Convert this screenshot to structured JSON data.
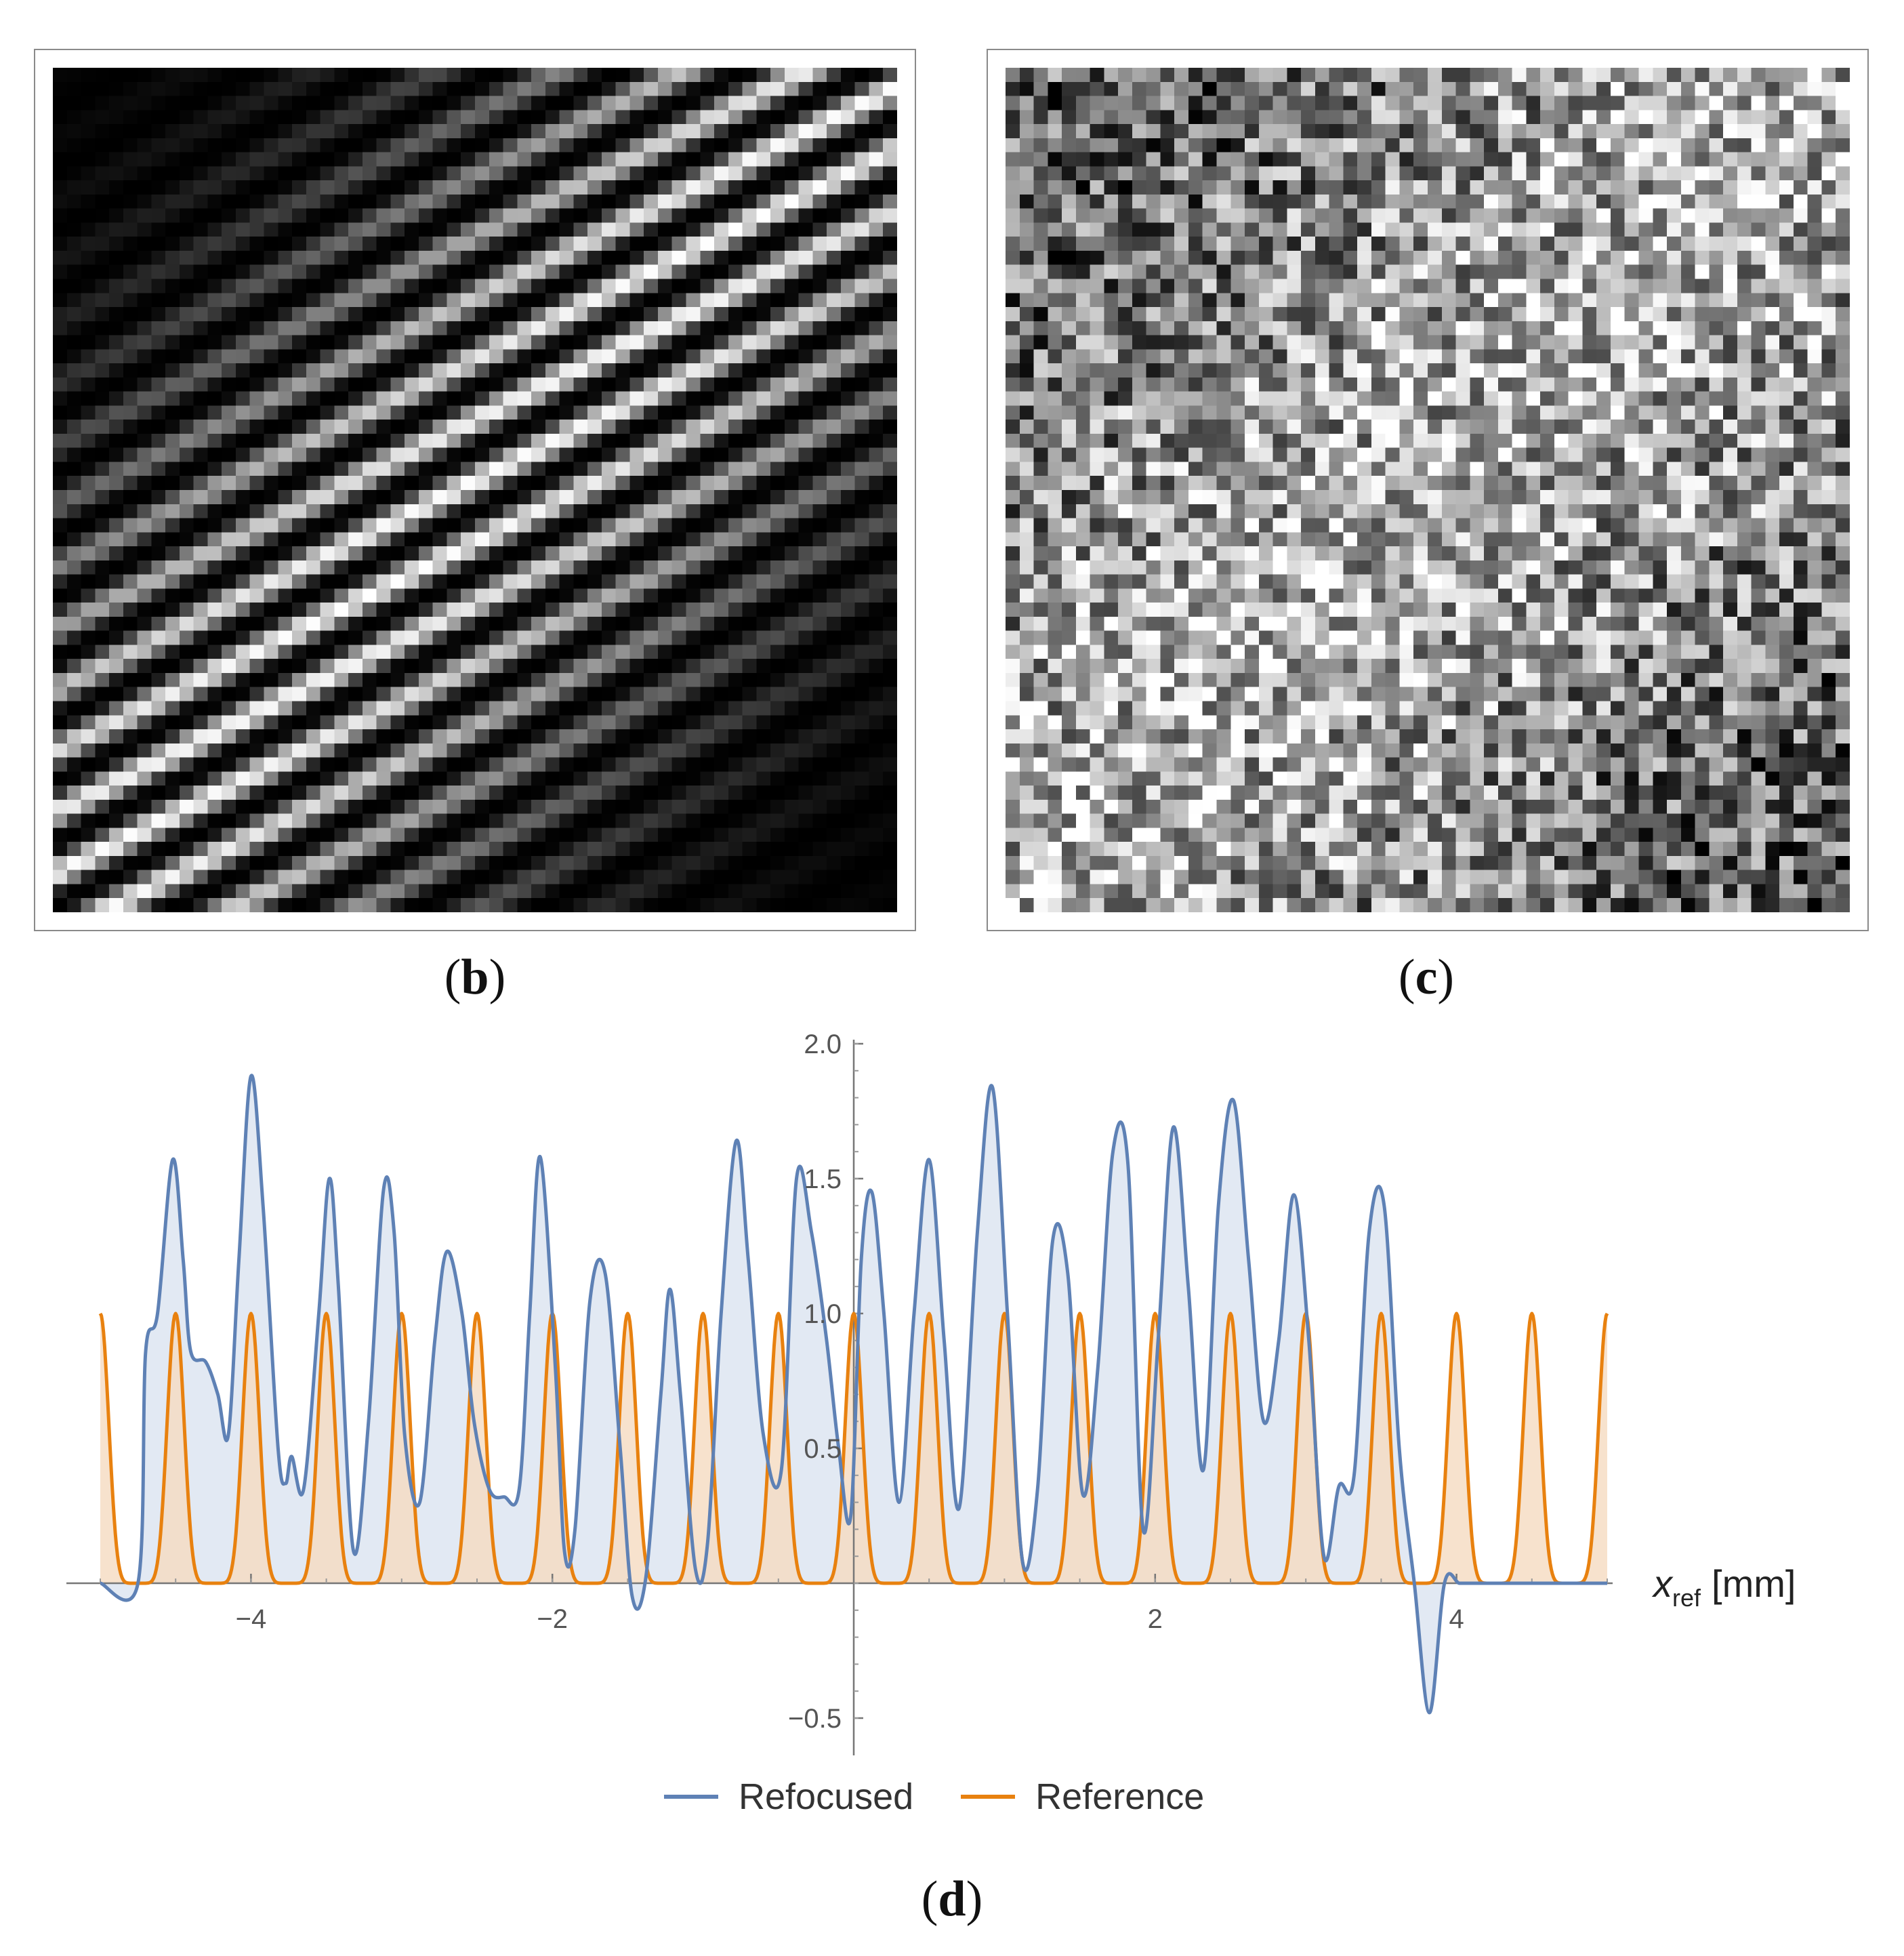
{
  "panels": {
    "b": {
      "label": "b"
    },
    "c": {
      "label": "c"
    },
    "d": {
      "label": "d"
    }
  },
  "chart_data": {
    "type": "area",
    "xlabel": "x",
    "xlabel_sub": "ref",
    "xlabel_unit": "[mm]",
    "xlim": [
      -5,
      5
    ],
    "ylim": [
      -0.62,
      2.0
    ],
    "xticks": [
      -4,
      -2,
      2,
      4
    ],
    "yticks": [
      -0.5,
      0.5,
      1.0,
      1.5,
      2.0
    ],
    "xtick_labels": [
      "−4",
      "−2",
      "2",
      "4"
    ],
    "ytick_labels": [
      "−0.5",
      "0.5",
      "1.0",
      "1.5",
      "2.0"
    ],
    "legend_position": "bottom-center",
    "series": [
      {
        "name": "Refocused",
        "color": "#5e81b5",
        "fill": "#dde5f1",
        "x": [
          -5.0,
          -4.75,
          -4.7,
          -4.62,
          -4.52,
          -4.45,
          -4.4,
          -4.3,
          -4.22,
          -4.15,
          -4.08,
          -4.0,
          -3.92,
          -3.82,
          -3.77,
          -3.73,
          -3.65,
          -3.55,
          -3.48,
          -3.42,
          -3.32,
          -3.22,
          -3.12,
          -3.05,
          -2.98,
          -2.88,
          -2.78,
          -2.7,
          -2.6,
          -2.52,
          -2.42,
          -2.32,
          -2.22,
          -2.15,
          -2.08,
          -1.98,
          -1.92,
          -1.85,
          -1.75,
          -1.65,
          -1.55,
          -1.47,
          -1.38,
          -1.28,
          -1.22,
          -1.15,
          -1.05,
          -0.97,
          -0.88,
          -0.78,
          -0.7,
          -0.6,
          -0.48,
          -0.38,
          -0.28,
          -0.18,
          -0.1,
          -0.02,
          0.05,
          0.12,
          0.2,
          0.3,
          0.4,
          0.5,
          0.6,
          0.7,
          0.82,
          0.92,
          1.02,
          1.12,
          1.22,
          1.32,
          1.42,
          1.52,
          1.62,
          1.72,
          1.82,
          1.92,
          2.02,
          2.12,
          2.22,
          2.32,
          2.42,
          2.52,
          2.62,
          2.72,
          2.82,
          2.92,
          3.02,
          3.12,
          3.22,
          3.32,
          3.42,
          3.52,
          3.62,
          3.72,
          3.82,
          3.92,
          4.02,
          4.12,
          4.2,
          4.27,
          4.32,
          4.42,
          4.5,
          4.58,
          4.66,
          4.72,
          4.75,
          4.78,
          4.82,
          4.86,
          5.0
        ],
        "y": [
          0.0,
          0.0,
          0.85,
          1.0,
          1.57,
          1.2,
          0.86,
          0.82,
          0.7,
          0.55,
          1.2,
          1.88,
          1.4,
          0.5,
          0.37,
          0.47,
          0.35,
          1.0,
          1.5,
          1.1,
          0.12,
          0.6,
          1.46,
          1.3,
          0.55,
          0.3,
          0.9,
          1.23,
          1.0,
          0.6,
          0.35,
          0.32,
          0.35,
          1.0,
          1.58,
          0.8,
          0.12,
          0.2,
          1.05,
          1.15,
          0.5,
          -0.05,
          0.02,
          0.7,
          1.09,
          0.7,
          0.05,
          0.15,
          1.0,
          1.64,
          1.2,
          0.55,
          0.42,
          1.5,
          1.3,
          0.9,
          0.5,
          0.25,
          1.2,
          1.45,
          1.0,
          0.3,
          1.0,
          1.57,
          0.9,
          0.28,
          1.3,
          1.84,
          1.0,
          0.08,
          0.35,
          1.27,
          1.15,
          0.33,
          0.8,
          1.6,
          1.55,
          0.2,
          0.9,
          1.69,
          1.1,
          0.42,
          1.4,
          1.79,
          1.2,
          0.6,
          0.9,
          1.44,
          0.9,
          0.1,
          0.36,
          0.4,
          1.3,
          1.4,
          0.5,
          0.0,
          -0.48,
          0.0,
          0.0,
          0.0,
          0.0,
          0.0,
          0.0,
          0.0,
          0.0,
          0.0,
          0.0,
          0.0,
          0.0,
          0.0,
          0.0,
          0.0,
          0.0
        ]
      },
      {
        "name": "Reference",
        "color": "#e8810f",
        "fill": "#f6ddc4",
        "period": 0.5,
        "peak": 1.0
      }
    ]
  }
}
